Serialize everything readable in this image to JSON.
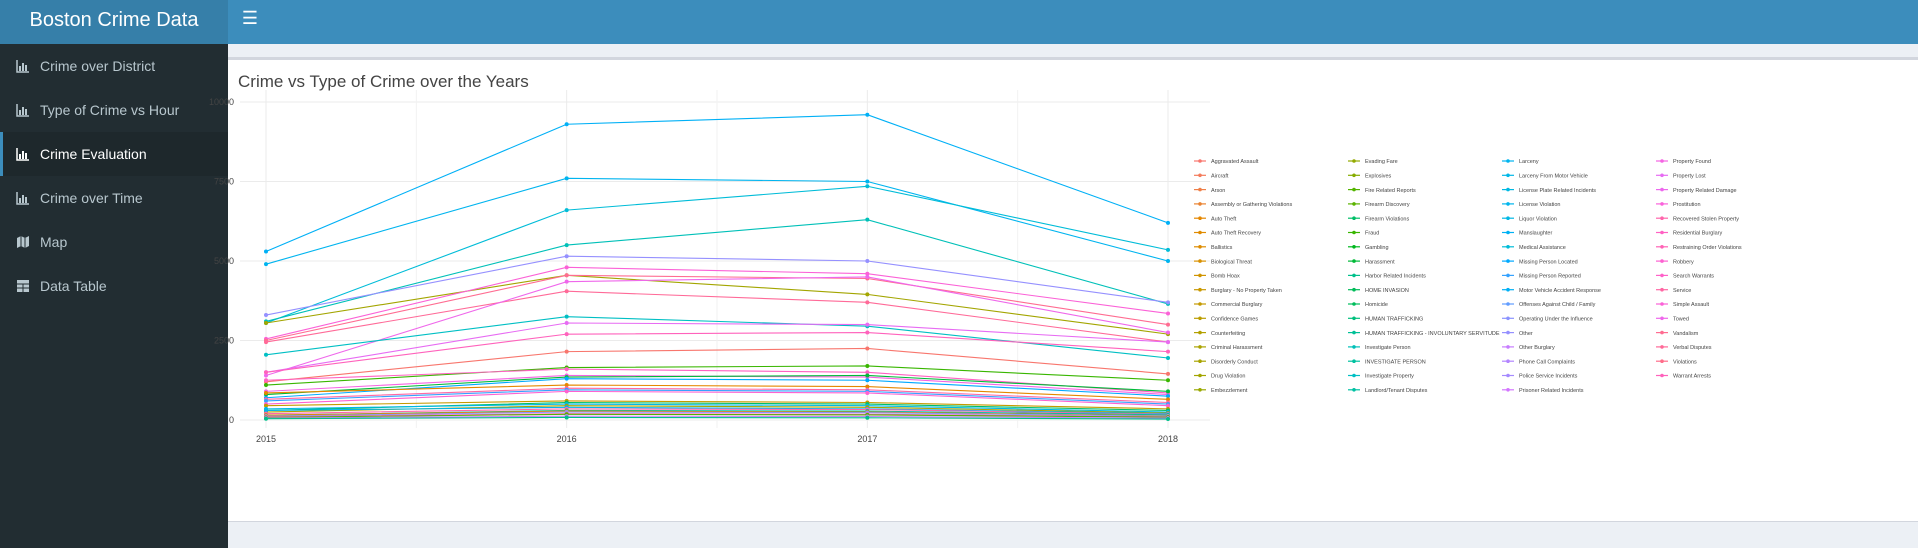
{
  "app": {
    "title": "Boston Crime Data"
  },
  "sidebar": {
    "items": [
      {
        "label": "Crime over District",
        "icon": "bar-chart-icon",
        "active": false
      },
      {
        "label": "Type of Crime vs Hour",
        "icon": "bar-chart-icon",
        "active": false
      },
      {
        "label": "Crime Evaluation",
        "icon": "bar-chart-icon",
        "active": true
      },
      {
        "label": "Crime over Time",
        "icon": "bar-chart-icon",
        "active": false
      },
      {
        "label": "Map",
        "icon": "map-icon",
        "active": false
      },
      {
        "label": "Data Table",
        "icon": "table-icon",
        "active": false
      }
    ]
  },
  "box": {
    "title": "Crime vs Type of Crime over the Years"
  },
  "chart_data": {
    "type": "line",
    "title": "Crime vs Type of Crime over the Years",
    "x": [
      2015,
      2016,
      2017,
      2018
    ],
    "ylim": [
      0,
      10000
    ],
    "yticks": [
      0,
      2500,
      5000,
      7500,
      10000
    ],
    "grid": true,
    "legend_position": "right",
    "series": [
      {
        "name": "Motor Vehicle Accident Response",
        "color": "#00b0f6",
        "values": [
          5300,
          9300,
          9600,
          6200
        ]
      },
      {
        "name": "Larceny",
        "color": "#00b4ef",
        "values": [
          4900,
          7600,
          7500,
          5000
        ]
      },
      {
        "name": "Medical Assistance",
        "color": "#00bcd8",
        "values": [
          3050,
          6600,
          7350,
          5350
        ]
      },
      {
        "name": "Investigate Person",
        "color": "#00c0b8",
        "values": [
          3100,
          5500,
          6300,
          3650
        ]
      },
      {
        "name": "Other",
        "color": "#9590ff",
        "values": [
          3300,
          5150,
          5000,
          3700
        ]
      },
      {
        "name": "Drug Violation",
        "color": "#a3a500",
        "values": [
          3050,
          4550,
          3950,
          2700
        ]
      },
      {
        "name": "Simple Assault",
        "color": "#fb61d7",
        "values": [
          2550,
          4800,
          4600,
          3350
        ]
      },
      {
        "name": "Vandalism",
        "color": "#ff6c91",
        "values": [
          2500,
          4550,
          4450,
          3000
        ]
      },
      {
        "name": "Verbal Disputes",
        "color": "#ff6a98",
        "values": [
          2450,
          4050,
          3700,
          2450
        ]
      },
      {
        "name": "Towed",
        "color": "#ef67eb",
        "values": [
          1400,
          4350,
          4500,
          2750
        ]
      },
      {
        "name": "Investigate Property",
        "color": "#00bfc4",
        "values": [
          2050,
          3250,
          2950,
          1950
        ]
      },
      {
        "name": "Property Lost",
        "color": "#e76bf3",
        "values": [
          1500,
          3050,
          3000,
          2450
        ]
      },
      {
        "name": "Warrant Arrests",
        "color": "#ff62bc",
        "values": [
          1500,
          2700,
          2750,
          2150
        ]
      },
      {
        "name": "Aggravated Assault",
        "color": "#f8766d",
        "values": [
          1200,
          2150,
          2250,
          1450
        ]
      },
      {
        "name": "Fraud",
        "color": "#39b600",
        "values": [
          1100,
          1650,
          1700,
          1250
        ]
      },
      {
        "name": "Residential Burglary",
        "color": "#ff61c3",
        "values": [
          1250,
          1600,
          1500,
          850
        ]
      },
      {
        "name": "Property Found",
        "color": "#f564e3",
        "values": [
          900,
          1400,
          1350,
          800
        ]
      },
      {
        "name": "Harassment",
        "color": "#00ba38",
        "values": [
          800,
          1350,
          1400,
          900
        ]
      },
      {
        "name": "Missing Person Located",
        "color": "#00a9ff",
        "values": [
          700,
          1300,
          1250,
          750
        ]
      },
      {
        "name": "Auto Theft",
        "color": "#e58700",
        "values": [
          850,
          1100,
          1050,
          650
        ]
      },
      {
        "name": "Service",
        "color": "#ff67a4",
        "values": [
          650,
          1000,
          950,
          550
        ]
      },
      {
        "name": "Missing Person Reported",
        "color": "#35a2ff",
        "values": [
          600,
          950,
          900,
          500
        ]
      },
      {
        "name": "Robbery",
        "color": "#fd61d1",
        "values": [
          500,
          900,
          850,
          450
        ]
      },
      {
        "name": "Counterfeiting",
        "color": "#c49a00",
        "values": [
          450,
          600,
          550,
          350
        ]
      },
      {
        "name": "Firearm Violations",
        "color": "#00be67",
        "values": [
          300,
          550,
          500,
          300
        ]
      },
      {
        "name": "Liquor Violation",
        "color": "#00b8e5",
        "values": [
          350,
          500,
          450,
          250
        ]
      },
      {
        "name": "Disorderly Conduct",
        "color": "#aba300",
        "values": [
          250,
          450,
          400,
          220
        ]
      },
      {
        "name": "License Violation",
        "color": "#00b5ed",
        "values": [
          300,
          400,
          350,
          200
        ]
      },
      {
        "name": "Recovered Stolen Property",
        "color": "#ff65ac",
        "values": [
          200,
          350,
          330,
          180
        ]
      },
      {
        "name": "Landlord/Tenant Disputes",
        "color": "#00c1a3",
        "values": [
          150,
          300,
          280,
          160
        ]
      },
      {
        "name": "Ballistics",
        "color": "#de8c00",
        "values": [
          150,
          280,
          250,
          130
        ]
      },
      {
        "name": "Operating Under the Influence",
        "color": "#8b93ff",
        "values": [
          120,
          250,
          230,
          120
        ]
      },
      {
        "name": "Restraining Order Violations",
        "color": "#ff63b6",
        "values": [
          100,
          200,
          180,
          100
        ]
      },
      {
        "name": "Fire Related Reports",
        "color": "#53b400",
        "values": [
          80,
          180,
          160,
          90
        ]
      },
      {
        "name": "Other Burglary",
        "color": "#c77cff",
        "values": [
          60,
          120,
          110,
          60
        ]
      },
      {
        "name": "Harbor Related Incidents",
        "color": "#00c08b",
        "values": [
          40,
          80,
          70,
          30
        ]
      }
    ]
  },
  "legend": {
    "columns": [
      [
        "Aggravated Assault",
        "Aircraft",
        "Arson",
        "Assembly or Gathering Violations",
        "Auto Theft",
        "Auto Theft Recovery",
        "Ballistics",
        "Biological Threat",
        "Bomb Hoax",
        "Burglary - No Property Taken",
        "Commercial Burglary",
        "Confidence Games",
        "Counterfeiting",
        "Criminal Harassment",
        "Disorderly Conduct",
        "Drug Violation",
        "Embezzlement"
      ],
      [
        "Evading Fare",
        "Explosives",
        "Fire Related Reports",
        "Firearm Discovery",
        "Firearm Violations",
        "Fraud",
        "Gambling",
        "Harassment",
        "Harbor Related Incidents",
        "HOME INVASION",
        "Homicide",
        "HUMAN TRAFFICKING",
        "HUMAN TRAFFICKING - INVOLUNTARY SERVITUDE",
        "Investigate Person",
        "INVESTIGATE PERSON",
        "Investigate Property",
        "Landlord/Tenant Disputes"
      ],
      [
        "Larceny",
        "Larceny From Motor Vehicle",
        "License Plate Related Incidents",
        "License Violation",
        "Liquor Violation",
        "Manslaughter",
        "Medical Assistance",
        "Missing Person Located",
        "Missing Person Reported",
        "Motor Vehicle Accident Response",
        "Offenses Against Child / Family",
        "Operating Under the Influence",
        "Other",
        "Other Burglary",
        "Phone Call Complaints",
        "Police Service Incidents",
        "Prisoner Related Incidents"
      ],
      [
        "Property Found",
        "Property Lost",
        "Property Related Damage",
        "Prostitution",
        "Recovered Stolen Property",
        "Residential Burglary",
        "Restraining Order Violations",
        "Robbery",
        "Search Warrants",
        "Service",
        "Simple Assault",
        "Towed",
        "Vandalism",
        "Verbal Disputes",
        "Violations",
        "Warrant Arrests"
      ]
    ],
    "colors": [
      [
        "#f8766d",
        "#f47b5b",
        "#ef7f48",
        "#ea8331",
        "#e58700",
        "#e08b00",
        "#de8c00",
        "#d89000",
        "#d09400",
        "#c99800",
        "#c49a00",
        "#bb9d00",
        "#b3a000",
        "#aba300",
        "#a9a400",
        "#a3a500",
        "#99a800"
      ],
      [
        "#93aa00",
        "#86ac00",
        "#53b400",
        "#5bb300",
        "#00be67",
        "#39b600",
        "#00b81f",
        "#00ba38",
        "#00c08b",
        "#00bc59",
        "#00bd5c",
        "#00bf7d",
        "#00c097",
        "#00c0b8",
        "#00c1a0",
        "#00bfc4",
        "#00c1a3"
      ],
      [
        "#00b4ef",
        "#00b7e8",
        "#00b9e3",
        "#00b5ed",
        "#00b8e5",
        "#00b1f4",
        "#00bcd8",
        "#00a9ff",
        "#35a2ff",
        "#00b0f6",
        "#619cff",
        "#8b93ff",
        "#9590ff",
        "#c77cff",
        "#b385ff",
        "#a58aff",
        "#d376ff"
      ],
      [
        "#f564e3",
        "#e76bf3",
        "#ed68ed",
        "#fa62db",
        "#ff65ac",
        "#ff61c3",
        "#ff63b6",
        "#fd61d1",
        "#ff61c9",
        "#ff67a4",
        "#fb61d7",
        "#ef67eb",
        "#ff6c91",
        "#ff6a98",
        "#ff6d8a",
        "#ff62bc"
      ]
    ]
  }
}
